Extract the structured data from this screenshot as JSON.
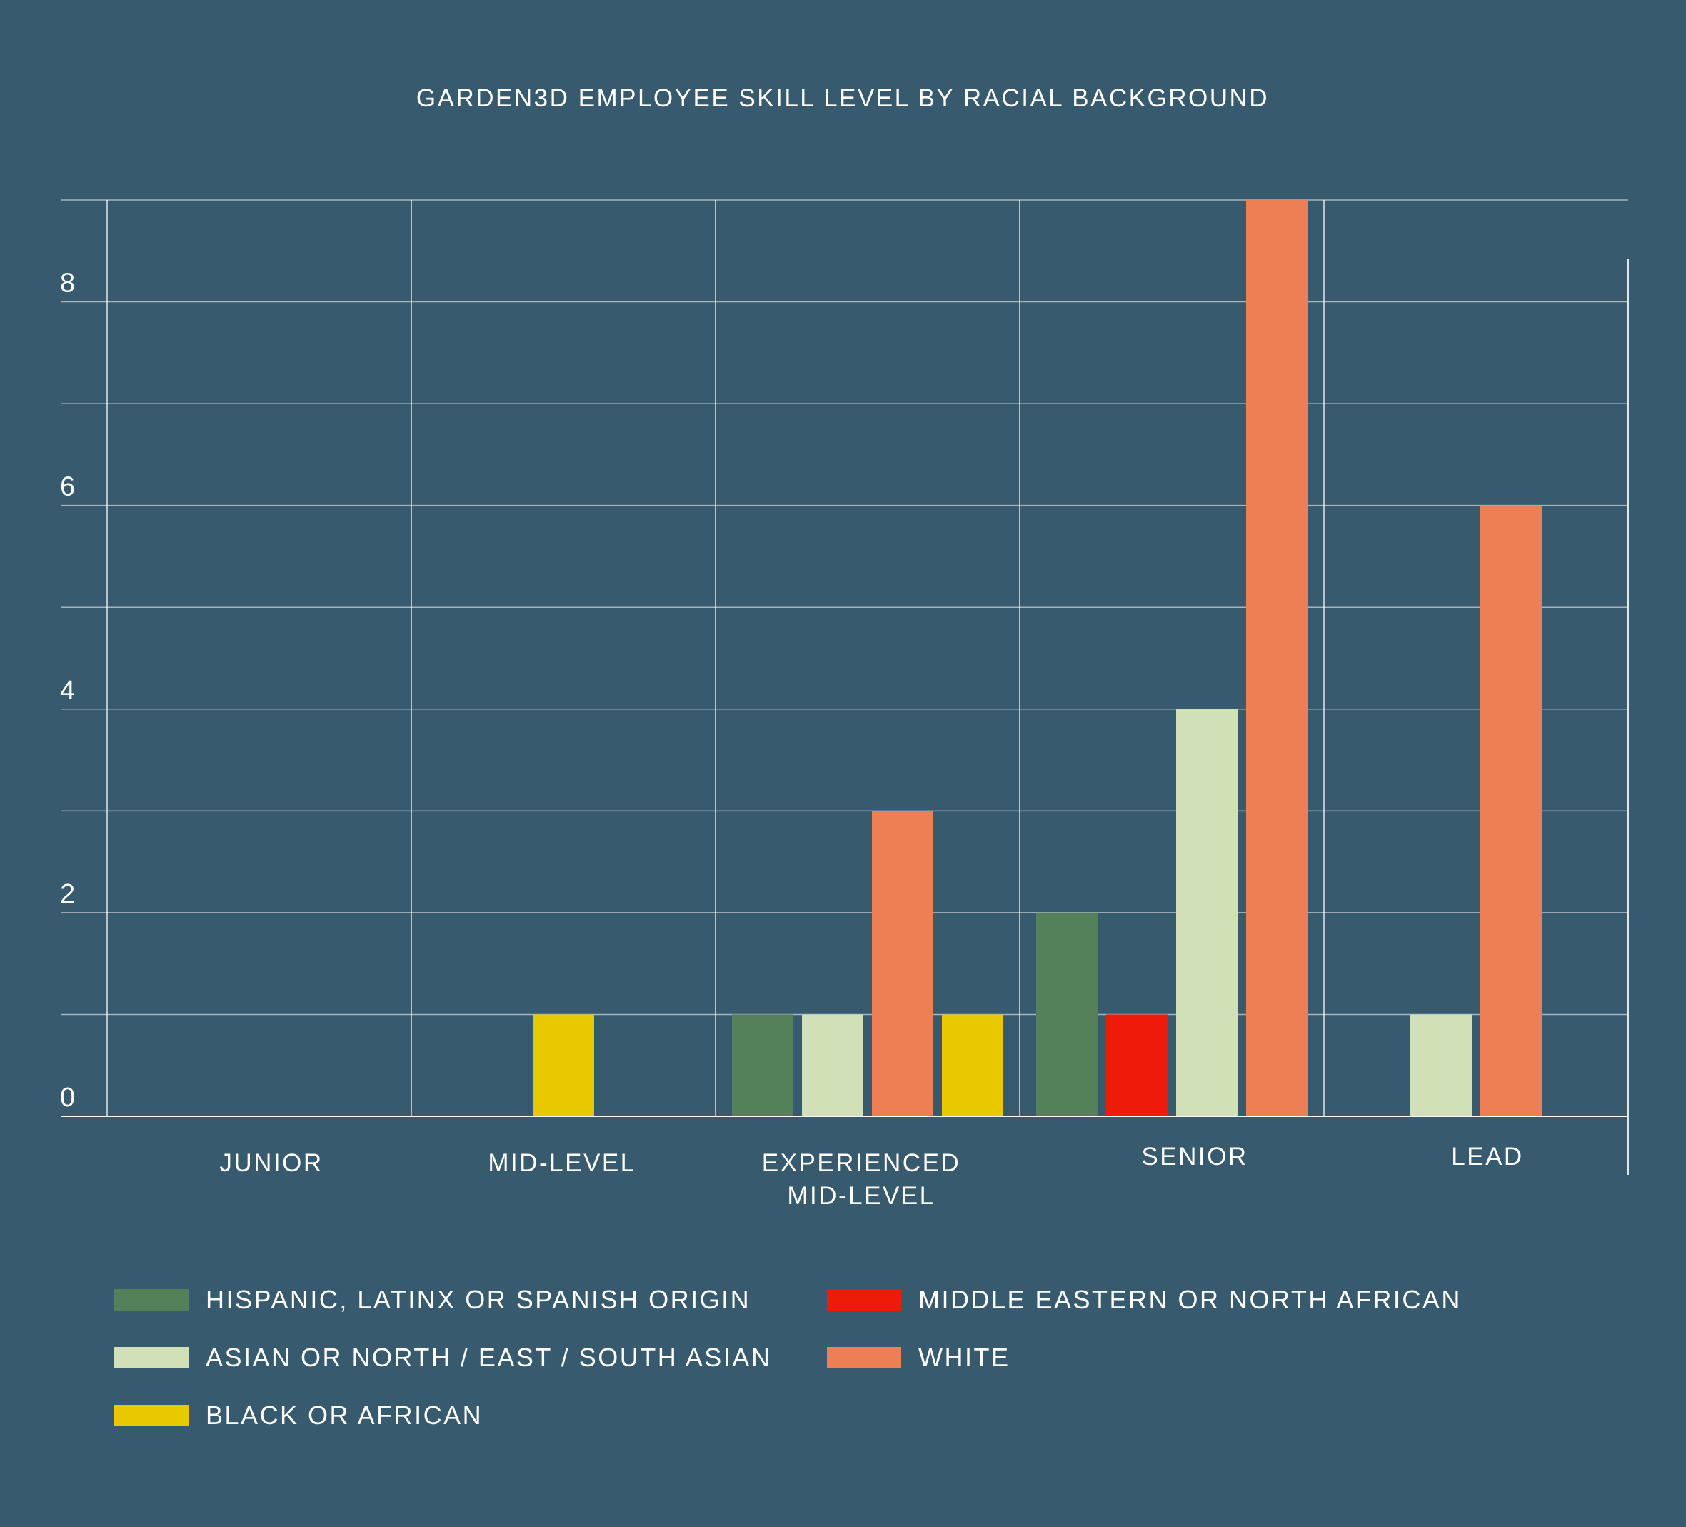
{
  "chart_data": {
    "type": "bar",
    "title": "GARDEN3D EMPLOYEE SKILL LEVEL BY RACIAL BACKGROUND",
    "categories": [
      [
        "JUNIOR"
      ],
      [
        "MID-LEVEL"
      ],
      [
        "EXPERIENCED",
        "MID-LEVEL"
      ],
      [
        "SENIOR"
      ],
      [
        "LEAD"
      ]
    ],
    "ylim": [
      0,
      9
    ],
    "yticks": [
      0,
      2,
      4,
      6,
      8
    ],
    "grid": true,
    "series": [
      {
        "name": "HISPANIC, LATINX OR SPANISH ORIGIN",
        "color": "#54805a",
        "values": [
          0,
          0,
          1,
          2,
          0
        ]
      },
      {
        "name": "MIDDLE EASTERN OR NORTH AFRICAN",
        "color": "#ee1a0a",
        "values": [
          0,
          0,
          0,
          1,
          0
        ]
      },
      {
        "name": "ASIAN OR NORTH / EAST / SOUTH ASIAN",
        "color": "#d2e0b8",
        "values": [
          0,
          0,
          1,
          4,
          1
        ]
      },
      {
        "name": "WHITE",
        "color": "#ec7f54",
        "values": [
          0,
          0,
          3,
          9,
          6
        ]
      },
      {
        "name": "BLACK OR AFRICAN",
        "color": "#e8c800",
        "values": [
          0,
          1,
          1,
          0,
          0
        ]
      }
    ],
    "legend": "bottom"
  }
}
